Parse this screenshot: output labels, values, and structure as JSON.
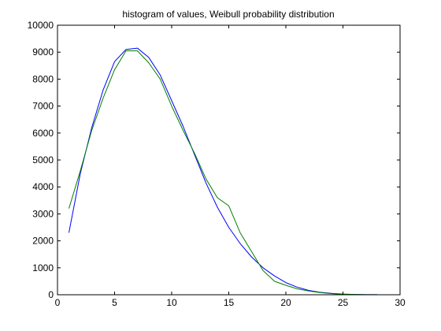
{
  "chart_data": {
    "type": "line",
    "title": "histogram of values, Weibull probability distribution",
    "xlabel": "",
    "ylabel": "",
    "xlim": [
      0,
      30
    ],
    "ylim": [
      0,
      10000
    ],
    "xticks": [
      0,
      5,
      10,
      15,
      20,
      25,
      30
    ],
    "yticks": [
      0,
      1000,
      2000,
      3000,
      4000,
      5000,
      6000,
      7000,
      8000,
      9000,
      10000
    ],
    "grid": false,
    "legend": "none",
    "series": [
      {
        "color": "#0000ff",
        "x": [
          1,
          2,
          3,
          4,
          5,
          6,
          7,
          8,
          9,
          10,
          11,
          12,
          13,
          14,
          15,
          16,
          17,
          18,
          19,
          20,
          21,
          22,
          23,
          24,
          25,
          26,
          27,
          28
        ],
        "y": [
          2300,
          4500,
          6200,
          7600,
          8650,
          9100,
          9150,
          8800,
          8150,
          7200,
          6250,
          5200,
          4150,
          3250,
          2500,
          1900,
          1400,
          1000,
          700,
          450,
          280,
          160,
          90,
          50,
          25,
          12,
          5,
          2
        ]
      },
      {
        "color": "#008000",
        "x": [
          1,
          2,
          3,
          4,
          5,
          6,
          7,
          8,
          9,
          10,
          11,
          12,
          13,
          14,
          15,
          16,
          17,
          18,
          19,
          20,
          21,
          22,
          23,
          24,
          25,
          26,
          27,
          28
        ],
        "y": [
          3200,
          4600,
          6100,
          7300,
          8350,
          9050,
          9050,
          8600,
          8000,
          7000,
          6100,
          5250,
          4300,
          3600,
          3300,
          2300,
          1600,
          900,
          500,
          350,
          220,
          140,
          80,
          40,
          20,
          10,
          5,
          2
        ]
      }
    ]
  }
}
